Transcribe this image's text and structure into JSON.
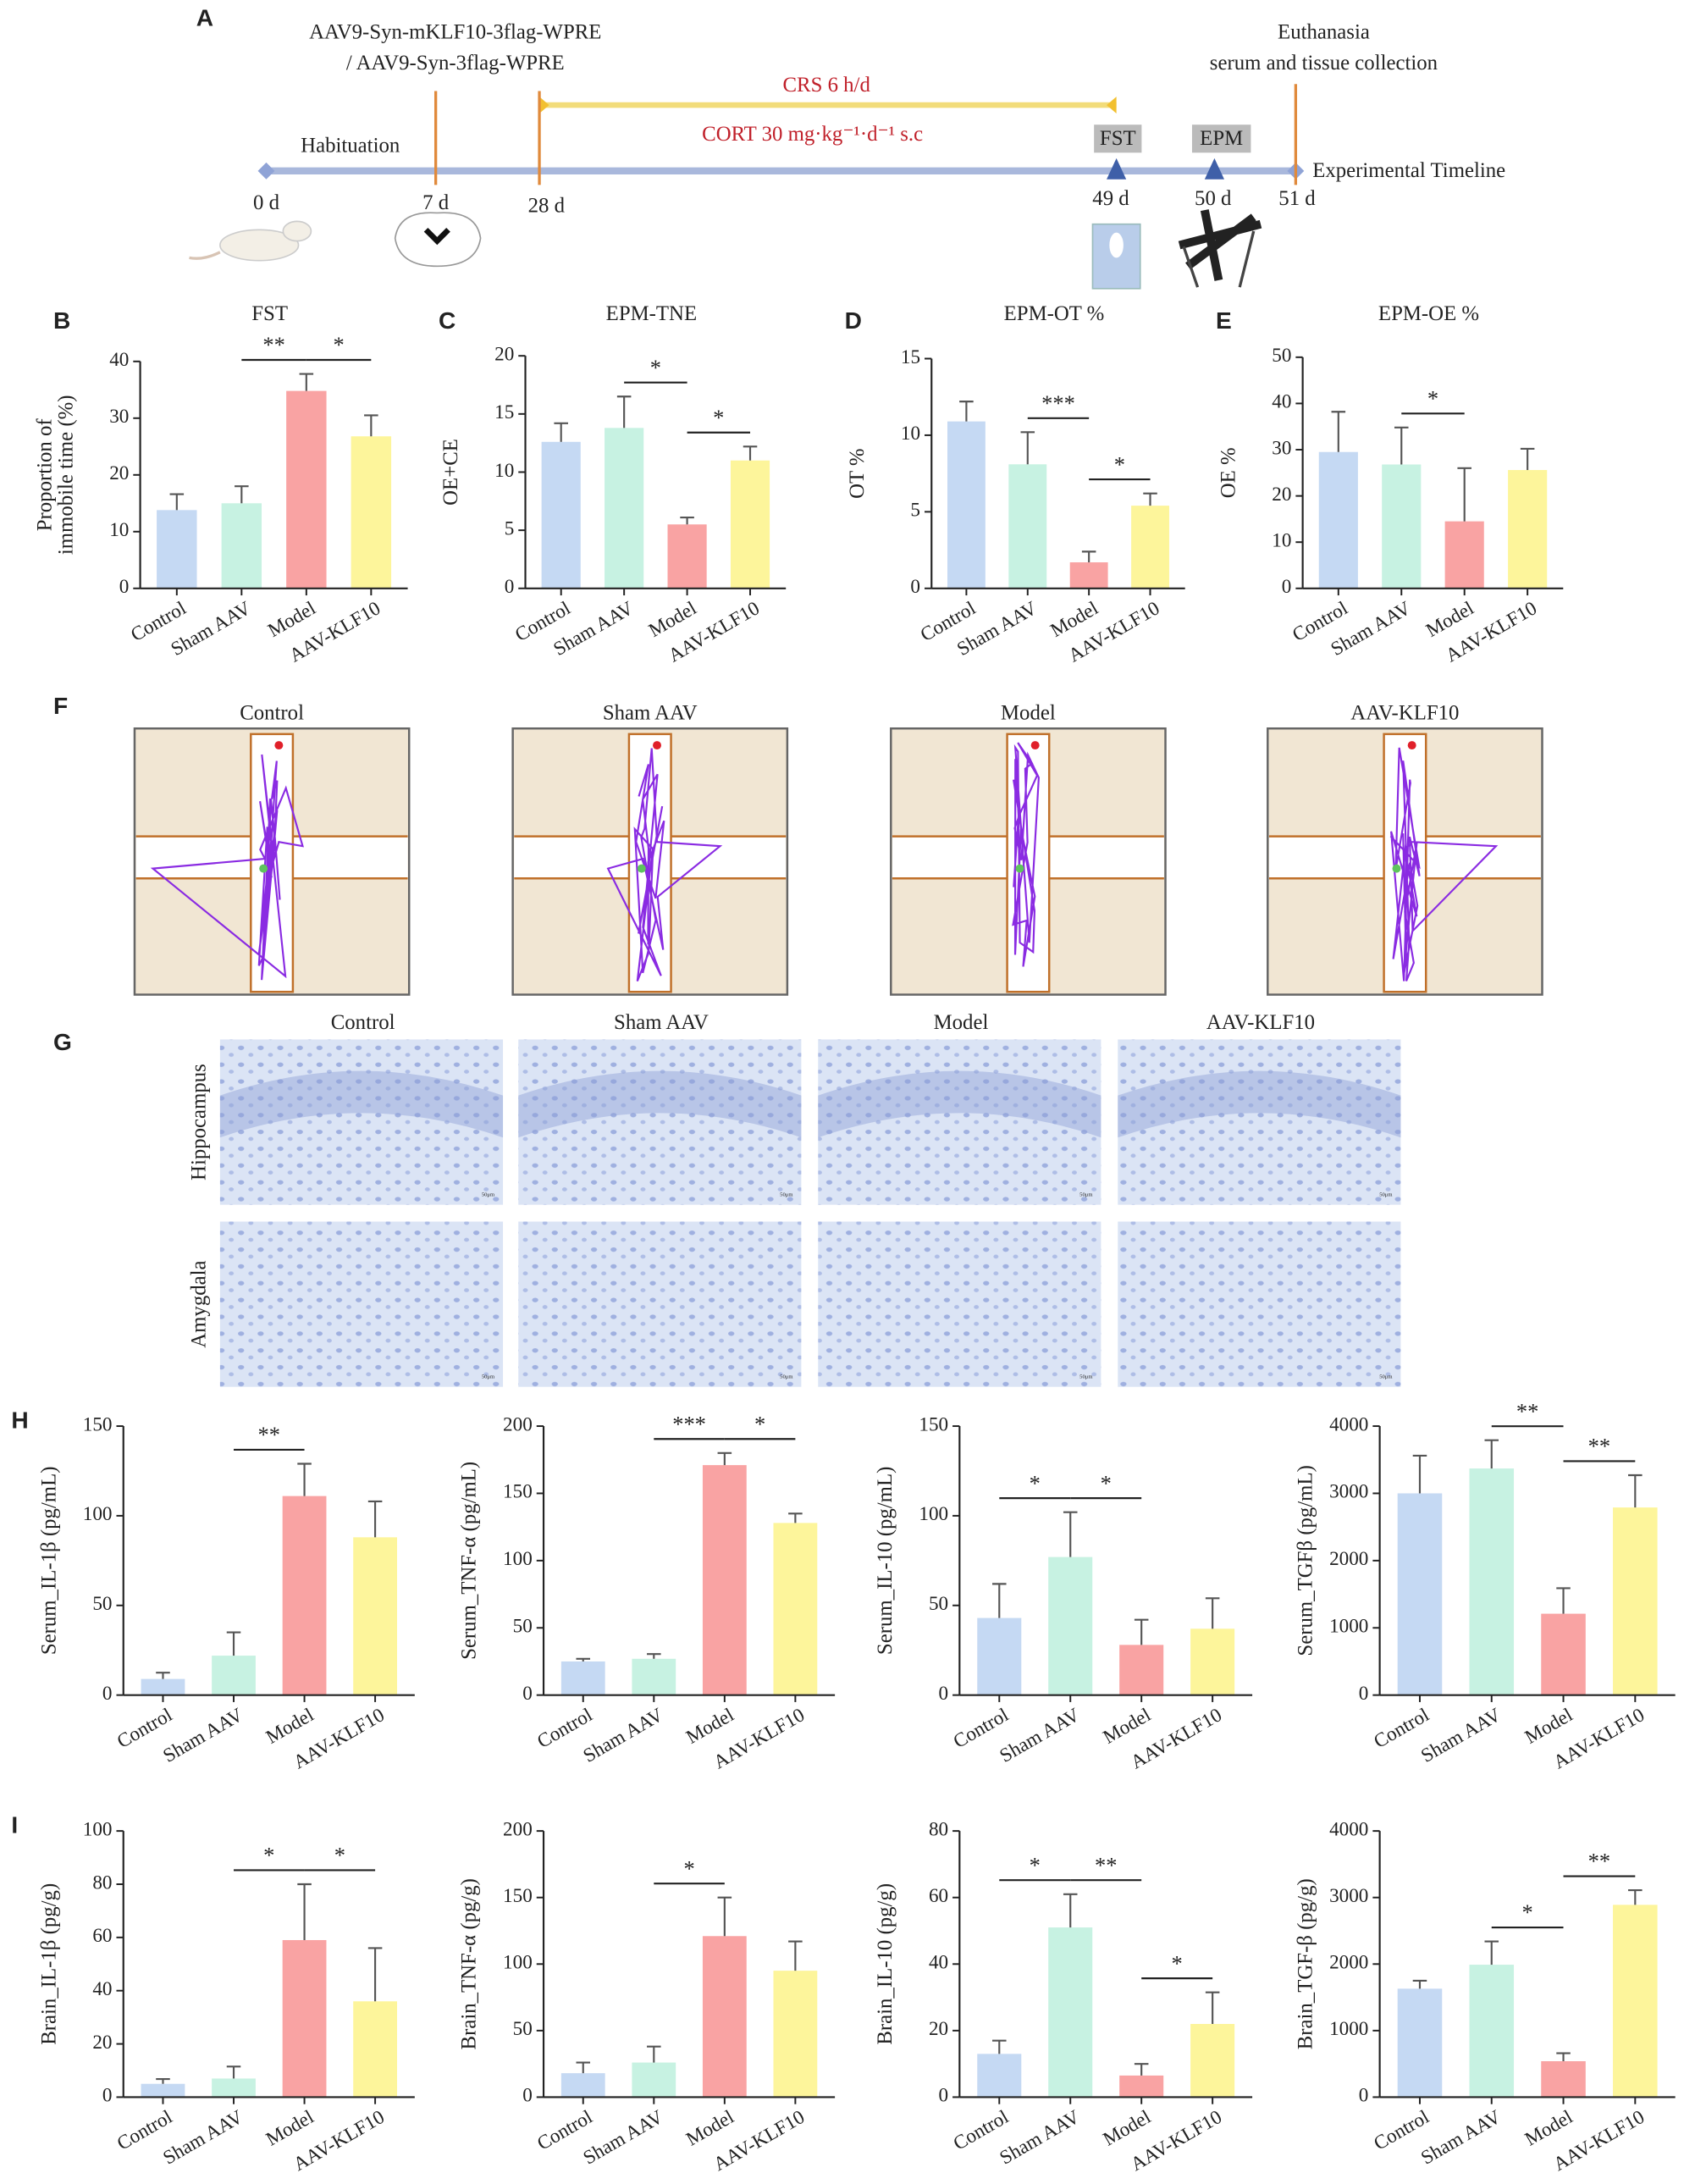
{
  "timeline": {
    "panel": "A",
    "vector": [
      "AAV9-Syn-mKLF10-3flag-WPRE",
      "/ AAV9-Syn-3flag-WPRE"
    ],
    "habituation": "Habituation",
    "crs": "CRS 6 h/d",
    "cort": "CORT 30 mg·kg⁻¹·d⁻¹  s.c",
    "end": [
      "Euthanasia",
      "serum and tissue collection"
    ],
    "tests": [
      "FST",
      "EPM"
    ],
    "axis_label": "Experimental Timeline",
    "days": [
      "0 d",
      "7 d",
      "28 d",
      "49 d",
      "50 d",
      "51 d"
    ]
  },
  "maze": {
    "panel": "F",
    "titles": [
      "Control",
      "Sham AAV",
      "Model",
      "AAV-KLF10"
    ]
  },
  "histology": {
    "panel": "G",
    "columns": [
      "Control",
      "Sham AAV",
      "Model",
      "AAV-KLF10"
    ],
    "rows": [
      "Hippocampus",
      "Amygdala"
    ],
    "scale_bar": "50μm"
  },
  "chart_data": [
    {
      "type": "bar",
      "panel": "B",
      "title": "FST",
      "y_label": [
        "Proportion of",
        "immobile time (%)"
      ],
      "categories": [
        "Control",
        "Sham AAV",
        "Model",
        "AAV-KLF10"
      ],
      "values": [
        13.8,
        15,
        34.8,
        26.8
      ],
      "errors": [
        2.8,
        3,
        3,
        3.7
      ],
      "colors": [
        "#c5d9f3",
        "#c7f2e2",
        "#f9a3a3",
        "#fdf59b"
      ],
      "ylim": [
        0,
        40
      ],
      "yticks": [
        0,
        10,
        20,
        30,
        40
      ],
      "significance": [
        {
          "label": "**",
          "pair": [
            1,
            2
          ]
        },
        {
          "label": "*",
          "pair": [
            2,
            3
          ]
        }
      ]
    },
    {
      "type": "bar",
      "panel": "C",
      "title": "EPM-TNE",
      "y_label": [
        "OE+CE"
      ],
      "categories": [
        "Control",
        "Sham AAV",
        "Model",
        "AAV-KLF10"
      ],
      "values": [
        12.6,
        13.8,
        5.5,
        11
      ],
      "errors": [
        1.6,
        2.7,
        0.6,
        1.2
      ],
      "colors": [
        "#c5d9f3",
        "#c7f2e2",
        "#f9a3a3",
        "#fdf59b"
      ],
      "ylim": [
        0,
        20
      ],
      "yticks": [
        0,
        5,
        10,
        15,
        20
      ],
      "significance": [
        {
          "label": "*",
          "pair": [
            1,
            2
          ]
        },
        {
          "label": "*",
          "pair": [
            2,
            3
          ]
        }
      ]
    },
    {
      "type": "bar",
      "panel": "D",
      "title": "EPM-OT %",
      "y_label": [
        "OT %"
      ],
      "categories": [
        "Control",
        "Sham AAV",
        "Model",
        "AAV-KLF10"
      ],
      "values": [
        10.9,
        8.1,
        1.7,
        5.4
      ],
      "errors": [
        1.3,
        2.1,
        0.7,
        0.8
      ],
      "colors": [
        "#c5d9f3",
        "#c7f2e2",
        "#f9a3a3",
        "#fdf59b"
      ],
      "ylim": [
        0,
        15
      ],
      "yticks": [
        0,
        5,
        10,
        15
      ],
      "significance": [
        {
          "label": "***",
          "pair": [
            1,
            2
          ]
        },
        {
          "label": "*",
          "pair": [
            2,
            3
          ]
        }
      ]
    },
    {
      "type": "bar",
      "panel": "E",
      "title": "EPM-OE %",
      "y_label": [
        "OE %"
      ],
      "categories": [
        "Control",
        "Sham AAV",
        "Model",
        "AAV-KLF10"
      ],
      "values": [
        29.5,
        26.8,
        14.5,
        25.6
      ],
      "errors": [
        8.7,
        8,
        11.5,
        4.6
      ],
      "colors": [
        "#c5d9f3",
        "#c7f2e2",
        "#f9a3a3",
        "#fdf59b"
      ],
      "ylim": [
        0,
        50
      ],
      "yticks": [
        0,
        10,
        20,
        30,
        40,
        50
      ],
      "significance": [
        {
          "label": "*",
          "pair": [
            1,
            2
          ]
        }
      ]
    },
    {
      "type": "bar",
      "panel": "H",
      "y_label": [
        "Serum_IL-1β (pg/mL)"
      ],
      "categories": [
        "Control",
        "Sham AAV",
        "Model",
        "AAV-KLF10"
      ],
      "values": [
        9,
        22,
        111,
        88
      ],
      "errors": [
        3.5,
        13,
        18,
        20
      ],
      "colors": [
        "#c5d9f3",
        "#c7f2e2",
        "#f9a3a3",
        "#fdf59b"
      ],
      "ylim": [
        0,
        150
      ],
      "yticks": [
        0,
        50,
        100,
        150
      ],
      "significance": [
        {
          "label": "**",
          "pair": [
            1,
            2
          ]
        }
      ]
    },
    {
      "type": "bar",
      "y_label": [
        "Serum_TNF-α (pg/mL)"
      ],
      "categories": [
        "Control",
        "Sham AAV",
        "Model",
        "AAV-KLF10"
      ],
      "values": [
        25,
        27,
        171,
        128
      ],
      "errors": [
        2,
        3.5,
        9,
        7
      ],
      "colors": [
        "#c5d9f3",
        "#c7f2e2",
        "#f9a3a3",
        "#fdf59b"
      ],
      "ylim": [
        0,
        200
      ],
      "yticks": [
        0,
        50,
        100,
        150,
        200
      ],
      "significance": [
        {
          "label": "***",
          "pair": [
            1,
            2
          ]
        },
        {
          "label": "*",
          "pair": [
            2,
            3
          ]
        }
      ]
    },
    {
      "type": "bar",
      "y_label": [
        "Serum_IL-10 (pg/mL)"
      ],
      "categories": [
        "Control",
        "Sham AAV",
        "Model",
        "AAV-KLF10"
      ],
      "values": [
        43,
        77,
        28,
        37
      ],
      "errors": [
        19,
        25,
        14,
        17
      ],
      "colors": [
        "#c5d9f3",
        "#c7f2e2",
        "#f9a3a3",
        "#fdf59b"
      ],
      "ylim": [
        0,
        150
      ],
      "yticks": [
        0,
        50,
        100,
        150
      ],
      "significance": [
        {
          "label": "*",
          "pair": [
            0,
            1
          ]
        },
        {
          "label": "*",
          "pair": [
            1,
            2
          ]
        }
      ]
    },
    {
      "type": "bar",
      "y_label": [
        "Serum_TGFβ (pg/mL)"
      ],
      "categories": [
        "Control",
        "Sham AAV",
        "Model",
        "AAV-KLF10"
      ],
      "values": [
        3000,
        3370,
        1210,
        2790
      ],
      "errors": [
        560,
        420,
        380,
        480
      ],
      "colors": [
        "#c5d9f3",
        "#c7f2e2",
        "#f9a3a3",
        "#fdf59b"
      ],
      "ylim": [
        0,
        4000
      ],
      "yticks": [
        0,
        1000,
        2000,
        3000,
        4000
      ],
      "significance": [
        {
          "label": "**",
          "pair": [
            1,
            2
          ]
        },
        {
          "label": "**",
          "pair": [
            2,
            3
          ]
        }
      ]
    },
    {
      "type": "bar",
      "panel": "I",
      "y_label": [
        "Brain_IL-1β (pg/g)"
      ],
      "categories": [
        "Control",
        "Sham AAV",
        "Model",
        "AAV-KLF10"
      ],
      "values": [
        5,
        7,
        59,
        36
      ],
      "errors": [
        1.8,
        4.5,
        21,
        20
      ],
      "colors": [
        "#c5d9f3",
        "#c7f2e2",
        "#f9a3a3",
        "#fdf59b"
      ],
      "ylim": [
        0,
        100
      ],
      "yticks": [
        0,
        20,
        40,
        60,
        80,
        100
      ],
      "significance": [
        {
          "label": "*",
          "pair": [
            1,
            2
          ]
        },
        {
          "label": "*",
          "pair": [
            2,
            3
          ]
        }
      ]
    },
    {
      "type": "bar",
      "y_label": [
        "Brain_TNF-α (pg/g)"
      ],
      "categories": [
        "Control",
        "Sham AAV",
        "Model",
        "AAV-KLF10"
      ],
      "values": [
        18,
        26,
        121,
        95
      ],
      "errors": [
        8,
        12,
        29,
        22
      ],
      "colors": [
        "#c5d9f3",
        "#c7f2e2",
        "#f9a3a3",
        "#fdf59b"
      ],
      "ylim": [
        0,
        200
      ],
      "yticks": [
        0,
        50,
        100,
        150,
        200
      ],
      "significance": [
        {
          "label": "*",
          "pair": [
            1,
            2
          ]
        }
      ]
    },
    {
      "type": "bar",
      "y_label": [
        "Brain_IL-10 (pg/g)"
      ],
      "categories": [
        "Control",
        "Sham AAV",
        "Model",
        "AAV-KLF10"
      ],
      "values": [
        13,
        51,
        6.5,
        22
      ],
      "errors": [
        4,
        10,
        3.5,
        9.5
      ],
      "colors": [
        "#c5d9f3",
        "#c7f2e2",
        "#f9a3a3",
        "#fdf59b"
      ],
      "ylim": [
        0,
        80
      ],
      "yticks": [
        0,
        20,
        40,
        60,
        80
      ],
      "significance": [
        {
          "label": "*",
          "pair": [
            0,
            1
          ]
        },
        {
          "label": "**",
          "pair": [
            1,
            2
          ]
        },
        {
          "label": "*",
          "pair": [
            2,
            3
          ]
        }
      ]
    },
    {
      "type": "bar",
      "y_label": [
        "Brain_TGF-β (pg/g)"
      ],
      "categories": [
        "Control",
        "Sham AAV",
        "Model",
        "AAV-KLF10"
      ],
      "values": [
        1630,
        1990,
        540,
        2890
      ],
      "errors": [
        120,
        350,
        120,
        220
      ],
      "colors": [
        "#c5d9f3",
        "#c7f2e2",
        "#f9a3a3",
        "#fdf59b"
      ],
      "ylim": [
        0,
        4000
      ],
      "yticks": [
        0,
        1000,
        2000,
        3000,
        4000
      ],
      "significance": [
        {
          "label": "*",
          "pair": [
            1,
            2
          ]
        },
        {
          "label": "**",
          "pair": [
            2,
            3
          ]
        }
      ]
    }
  ]
}
